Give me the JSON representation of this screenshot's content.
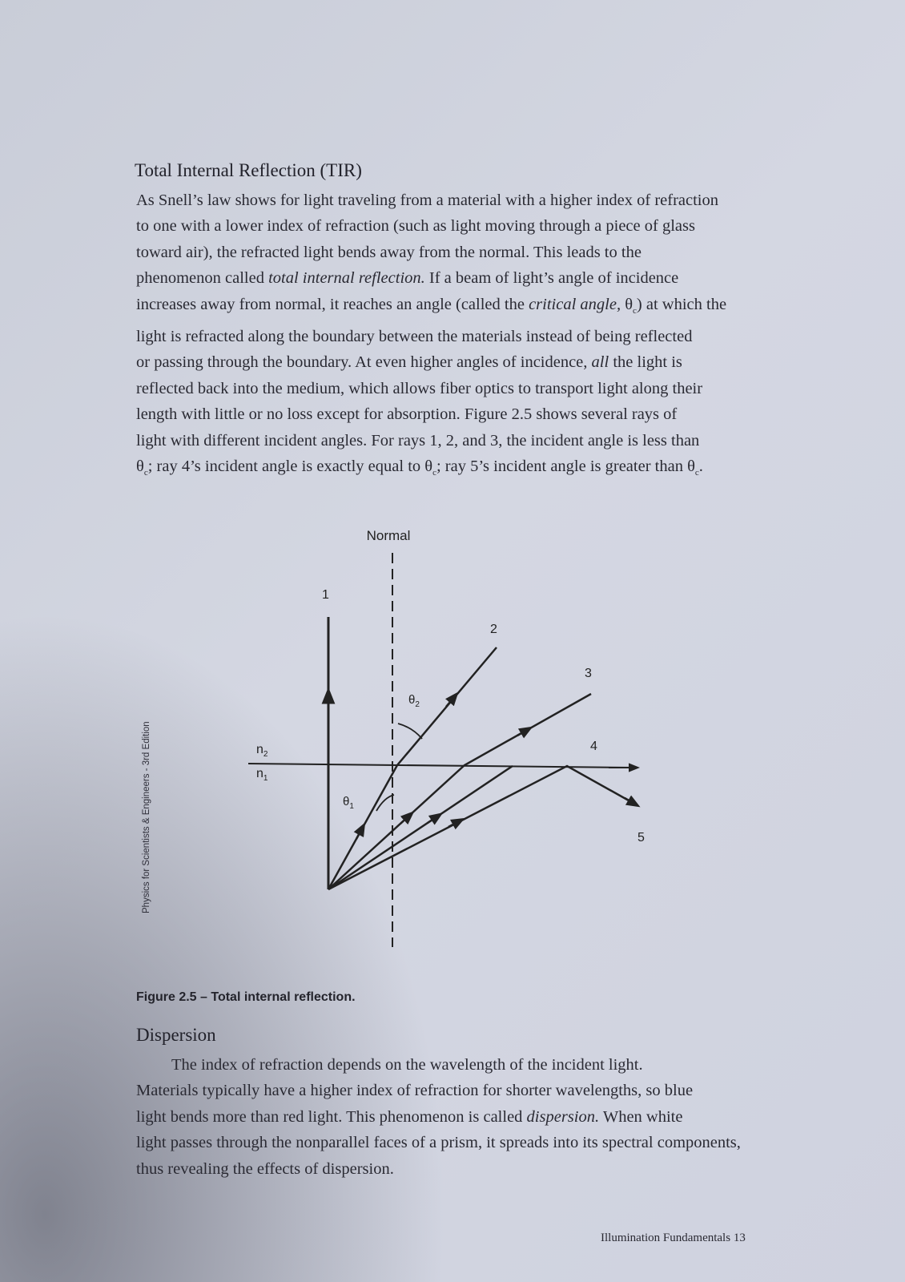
{
  "tir": {
    "heading": "Total Internal Reflection (TIR)",
    "l1": "As Snell’s law shows for light traveling from a material with a higher index of refraction",
    "l2": "to one with a lower index of refraction (such as light moving through a piece of glass",
    "l3": "toward air), the refracted light bends away from the normal.  This leads to the",
    "l4a": "phenomenon called ",
    "l4b": "total internal reflection.",
    "l4c": "  If a beam of light’s angle of incidence",
    "l5a": "increases away from normal, it reaches an angle (called the ",
    "l5b": "critical angle,",
    "l5c": " θ",
    "l5d": "c",
    "l5e": ") at which the",
    "l6": "light is refracted along the boundary between the materials instead of being reflected",
    "l7a": "or passing through the boundary.  At even higher angles of incidence, ",
    "l7b": "all",
    "l7c": " the light is",
    "l8": "reflected back into the medium, which allows fiber optics to transport light along their",
    "l9": "length with little or no loss except for absorption.  Figure 2.5 shows several rays of",
    "l10": "light with different incident angles.  For rays 1, 2, and 3, the incident angle is less than",
    "l11a": "θ",
    "l11b": "c",
    "l11c": "; ray 4’s incident angle is exactly equal to θ",
    "l11d": "c",
    "l11e": "; ray 5’s incident angle is greater than θ",
    "l11f": "c",
    "l11g": "."
  },
  "figure": {
    "normal_label": "Normal",
    "ray_labels": [
      "1",
      "2",
      "3",
      "4",
      "5"
    ],
    "n2": "n",
    "n2_sub": "2",
    "n1": "n",
    "n1_sub": "1",
    "theta1": "θ",
    "theta1_sub": "1",
    "theta2": "θ",
    "theta2_sub": "2",
    "caption": "Figure 2.5 – Total internal reflection."
  },
  "side_text": "Physics for Scientists & Engineers - 3rd Edition",
  "dispersion": {
    "heading": "Dispersion",
    "l1": "The index of refraction depends on the wavelength of the incident light.",
    "l2": "Materials typically have a higher index of refraction for shorter wavelengths, so blue",
    "l3": "light bends more than red light.  This phenomenon is called ",
    "l3b": "dispersion.",
    "l3c": "  When white",
    "l4": "light passes through the nonparallel faces of a prism, it spreads into its spectral components,",
    "l5": "thus revealing the effects of dispersion."
  },
  "footer": {
    "text": "Illumination Fundamentals  13"
  }
}
